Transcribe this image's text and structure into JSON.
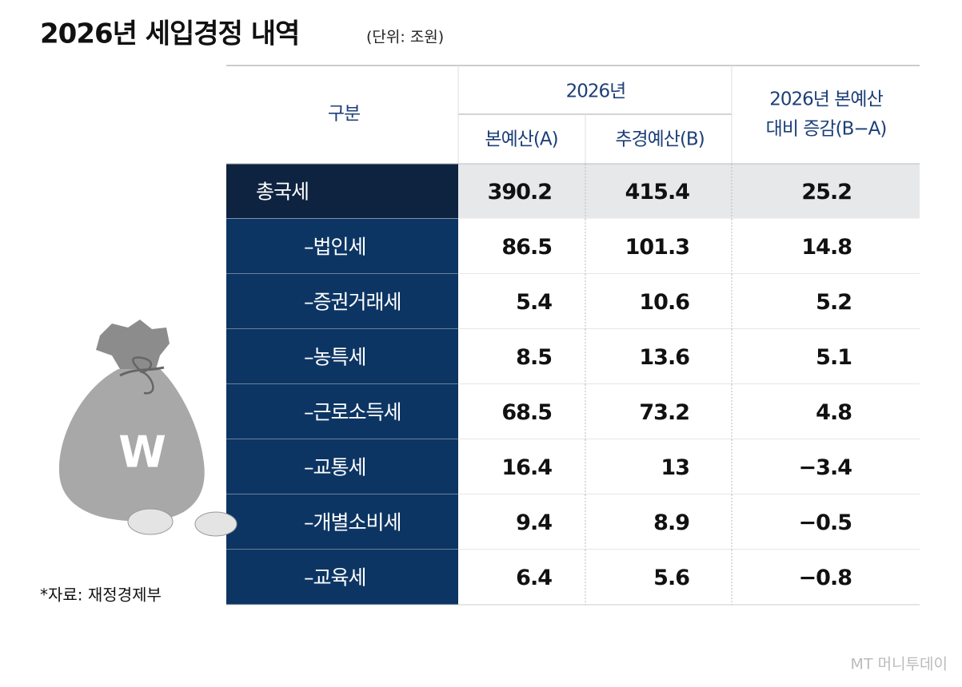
{
  "header": {
    "title": "2026년 세입경정 내역",
    "unit": "(단위: 조원)"
  },
  "table": {
    "columns": {
      "category": "구분",
      "year": "2026년",
      "a": "본예산(A)",
      "b": "추경예산(B)",
      "diff_line1": "2026년 본예산",
      "diff_line2": "대비 증감(B−A)"
    },
    "rows": [
      [
        "총국세",
        "390.2",
        "415.4",
        "25.2"
      ],
      [
        "–법인세",
        "86.5",
        "101.3",
        "14.8"
      ],
      [
        "–증권거래세",
        "5.4",
        "10.6",
        "5.2"
      ],
      [
        "–농특세",
        "8.5",
        "13.6",
        "5.1"
      ],
      [
        "–근로소득세",
        "68.5",
        "73.2",
        "4.8"
      ],
      [
        "–교통세",
        "16.4",
        "13",
        "−3.4"
      ],
      [
        "–개별소비세",
        "9.4",
        "8.9",
        "−0.5"
      ],
      [
        "–교육세",
        "6.4",
        "5.6",
        "−0.8"
      ]
    ]
  },
  "footer": {
    "source": "*자료: 재정경제부",
    "watermark": "MT 머니투데이"
  }
}
